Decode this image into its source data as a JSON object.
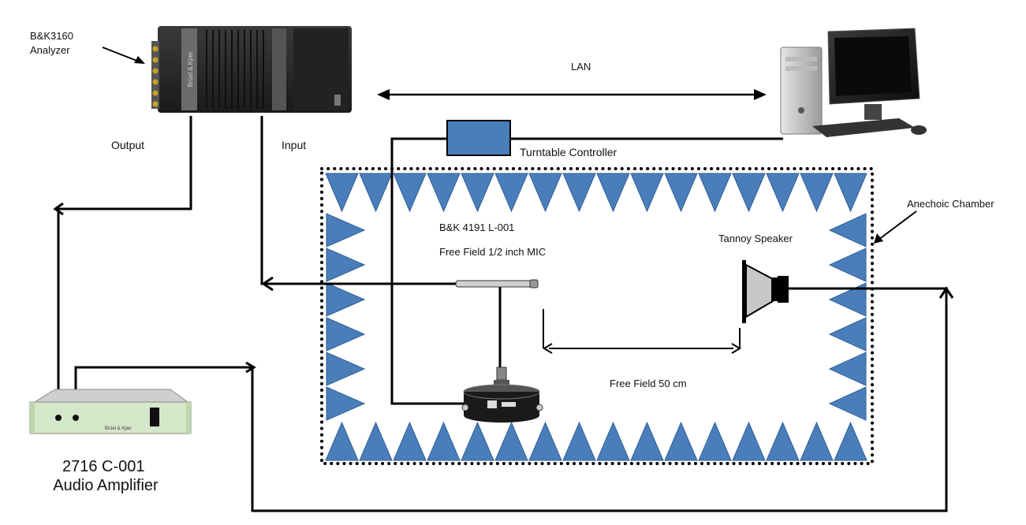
{
  "labels": {
    "analyzer": [
      "B&K3160",
      "Analyzer"
    ],
    "output": "Output",
    "input": "Input",
    "lan": "LAN",
    "turntable_controller": "Turntable Controller",
    "anechoic_chamber": "Anechoic Chamber",
    "mic_model": "B&K 4191  L-001",
    "mic_desc": "Free Field 1/2 inch MIC",
    "speaker": "Tannoy Speaker",
    "free_field": "Free Field 50 cm",
    "amplifier": [
      "2716 C-001",
      "Audio Amplifier"
    ]
  },
  "device_marks": {
    "analyzer_brand": "Brüel & Kjær",
    "amplifier_brand": "Brüel & Kjær"
  },
  "colors": {
    "absorber_fill": "#4a7ebb",
    "absorber_stroke": "#2d5f96",
    "wire": "#000000",
    "chamber_dots": "#000000",
    "amplifier_panel": "#d4e7c8",
    "analyzer_body": "#2b2b2b"
  },
  "icons": {
    "computer": "desktop-computer-icon",
    "analyzer": "analyzer-device-icon",
    "amplifier": "rack-amplifier-icon",
    "turntable": "turntable-icon",
    "speaker": "loudspeaker-icon",
    "microphone": "microphone-icon"
  }
}
